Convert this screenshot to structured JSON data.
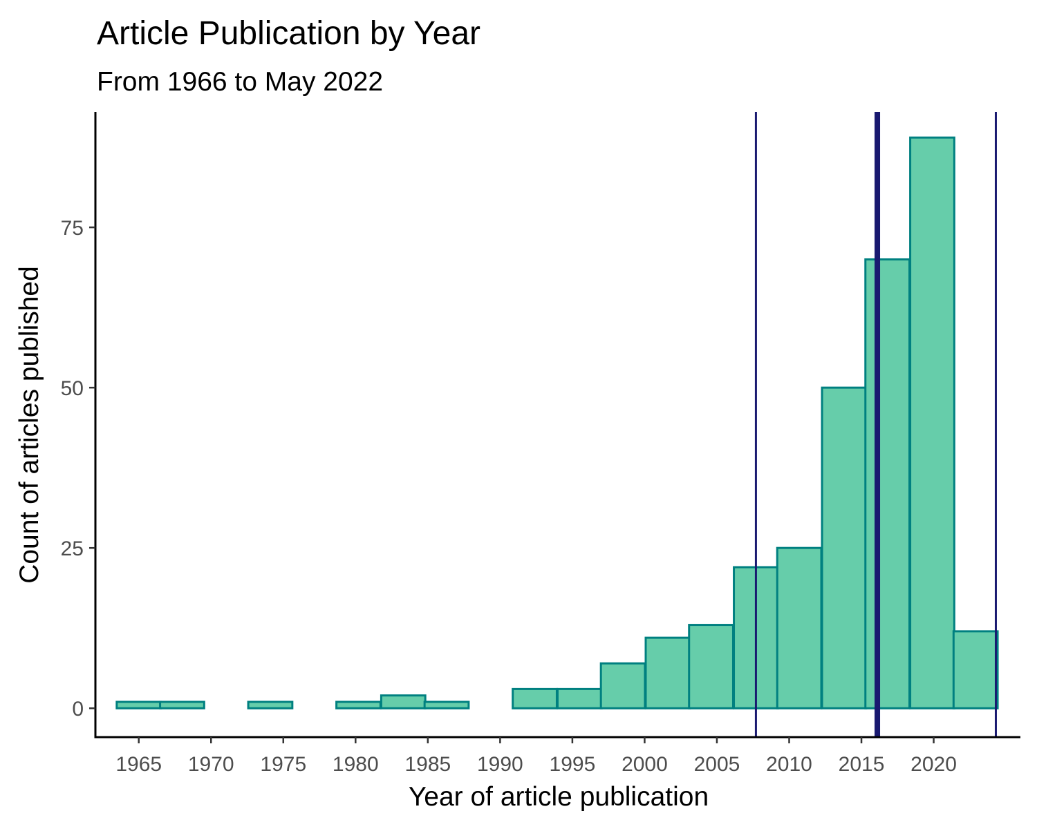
{
  "chart_data": {
    "type": "bar",
    "title": "Article Publication by Year",
    "subtitle": "From 1966 to May 2022",
    "xlabel": "Year of article publication",
    "ylabel": "Count of articles published",
    "xlim": [
      1962,
      2026
    ],
    "ylim": [
      -4.5,
      93
    ],
    "x_ticks": [
      1965,
      1970,
      1975,
      1980,
      1985,
      1990,
      1995,
      2000,
      2005,
      2010,
      2015,
      2020
    ],
    "x_tick_labels": [
      "1965",
      "1970",
      "1975",
      "1980",
      "1985",
      "1990",
      "1995",
      "2000",
      "2005",
      "2010",
      "2015",
      "2020"
    ],
    "y_ticks": [
      0,
      25,
      50,
      75
    ],
    "y_tick_labels": [
      "0",
      "25",
      "50",
      "75"
    ],
    "bin_width": 3.05,
    "bins": [
      {
        "x": 1965.0,
        "count": 1
      },
      {
        "x": 1968.0,
        "count": 1
      },
      {
        "x": 1971.1,
        "count": 0
      },
      {
        "x": 1974.1,
        "count": 1
      },
      {
        "x": 1977.2,
        "count": 0
      },
      {
        "x": 1980.2,
        "count": 1
      },
      {
        "x": 1983.3,
        "count": 2
      },
      {
        "x": 1986.3,
        "count": 1
      },
      {
        "x": 1989.4,
        "count": 0
      },
      {
        "x": 1992.4,
        "count": 3
      },
      {
        "x": 1995.5,
        "count": 3
      },
      {
        "x": 1998.5,
        "count": 7
      },
      {
        "x": 2001.6,
        "count": 11
      },
      {
        "x": 2004.6,
        "count": 13
      },
      {
        "x": 2007.7,
        "count": 22
      },
      {
        "x": 2010.7,
        "count": 25
      },
      {
        "x": 2013.8,
        "count": 50
      },
      {
        "x": 2016.8,
        "count": 70
      },
      {
        "x": 2019.9,
        "count": 89
      },
      {
        "x": 2022.9,
        "count": 12
      }
    ],
    "vlines": [
      {
        "x": 2007.7,
        "weight": "thin"
      },
      {
        "x": 2016.1,
        "weight": "thick"
      },
      {
        "x": 2024.3,
        "weight": "thin"
      }
    ],
    "bar_fill": "#66cdaa",
    "bar_stroke": "#008080",
    "vline_color": "#191970",
    "grid": false
  }
}
